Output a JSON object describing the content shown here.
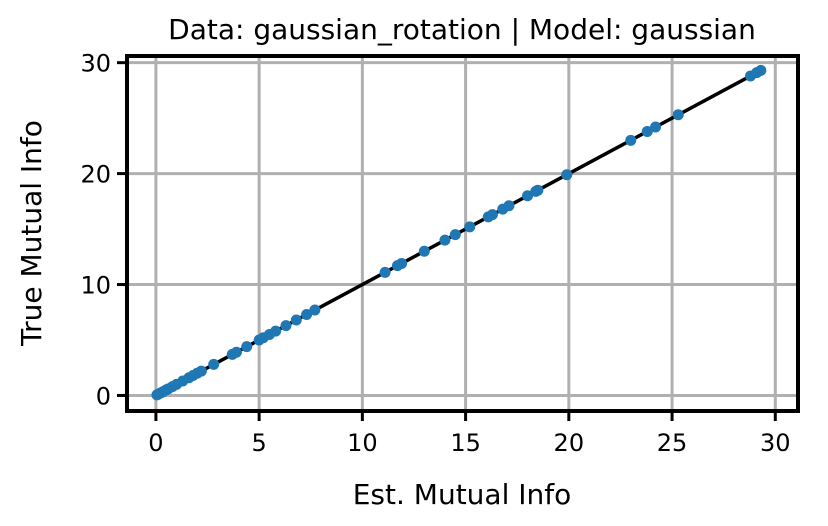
{
  "chart_data": {
    "type": "scatter",
    "title": "Data: gaussian_rotation | Model: gaussian",
    "xlabel": "Est. Mutual Info",
    "ylabel": "True Mutual Info",
    "xlim": [
      -1.4,
      31.1
    ],
    "ylim": [
      -1.4,
      30.6
    ],
    "xticks": [
      0,
      5,
      10,
      15,
      20,
      25,
      30
    ],
    "yticks": [
      0,
      10,
      20,
      30
    ],
    "grid": true,
    "legend": "none",
    "colors": {
      "points": "#1f77b4",
      "reference_line": "#000000",
      "grid": "#b0b0b0"
    },
    "reference_line": {
      "x": [
        0,
        29.3
      ],
      "y": [
        0,
        29.3
      ]
    },
    "series": [
      {
        "x": [
          0.05,
          0.12,
          0.25,
          0.35,
          0.5,
          0.6,
          0.8,
          1.0,
          1.3,
          1.6,
          1.8,
          2.0,
          2.2,
          2.8,
          3.7,
          3.9,
          4.4,
          5.0,
          5.2,
          5.5,
          5.8,
          6.3,
          6.8,
          7.3,
          7.7,
          11.1,
          11.7,
          11.9,
          13.0,
          14.0,
          14.5,
          15.2,
          16.1,
          16.3,
          16.8,
          17.1,
          18.0,
          18.4,
          18.5,
          19.9,
          23.0,
          23.8,
          24.2,
          25.3,
          28.8,
          29.1,
          29.3
        ],
        "y": [
          0.05,
          0.12,
          0.25,
          0.35,
          0.5,
          0.6,
          0.8,
          1.0,
          1.3,
          1.6,
          1.8,
          2.0,
          2.2,
          2.8,
          3.7,
          3.9,
          4.4,
          5.0,
          5.2,
          5.5,
          5.8,
          6.3,
          6.8,
          7.3,
          7.7,
          11.1,
          11.7,
          11.9,
          13.0,
          14.0,
          14.5,
          15.2,
          16.1,
          16.3,
          16.8,
          17.1,
          18.0,
          18.4,
          18.5,
          19.9,
          23.0,
          23.8,
          24.2,
          25.3,
          28.8,
          29.1,
          29.3
        ]
      }
    ]
  }
}
